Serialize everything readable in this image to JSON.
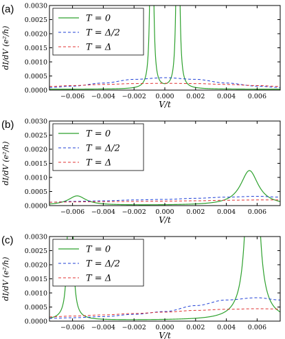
{
  "colors": {
    "t0": "#2ca02c",
    "thalf": "#1f3fd6",
    "tdelta": "#e03030",
    "axis": "#000000"
  },
  "chart_data": [
    {
      "panel_label": "(a)",
      "type": "line",
      "xlabel": "V/t",
      "ylabel": "dI/dV (e²/h)",
      "xlim": [
        -0.0075,
        0.0075
      ],
      "ylim": [
        0,
        0.003
      ],
      "xticks": [
        "-0.006",
        "-0.004",
        "-0.002",
        "0.000",
        "0.002",
        "0.004",
        "0.006"
      ],
      "yticks": [
        "0.0000",
        "0.0005",
        "0.0010",
        "0.0015",
        "0.0020",
        "0.0025",
        "0.0030"
      ],
      "legend_position": "top-left",
      "series": [
        {
          "name": "T = 0",
          "style": "solid",
          "color": "#2ca02c",
          "peaks": [
            {
              "x0": -0.00085,
              "gamma": 6e-05,
              "amp": 0.02
            },
            {
              "x0": 0.00085,
              "gamma": 6e-05,
              "amp": 0.02
            }
          ],
          "baseline": 3e-05
        },
        {
          "name": "T = Δ/2",
          "style": "dashed",
          "color": "#1f3fd6",
          "x": [
            -0.0075,
            -0.006,
            -0.004,
            -0.002,
            0.0,
            0.002,
            0.004,
            0.006,
            0.0075
          ],
          "y": [
            9e-05,
            0.00014,
            0.00025,
            0.00038,
            0.00044,
            0.00038,
            0.00025,
            0.00014,
            9e-05
          ]
        },
        {
          "name": "T = Δ",
          "style": "dashed",
          "color": "#e03030",
          "x": [
            -0.0075,
            -0.006,
            -0.004,
            -0.002,
            0.0,
            0.002,
            0.004,
            0.006,
            0.0075
          ],
          "y": [
            0.00013,
            0.00016,
            0.0002,
            0.00023,
            0.00024,
            0.00023,
            0.0002,
            0.00016,
            0.00013
          ]
        }
      ]
    },
    {
      "panel_label": "(b)",
      "type": "line",
      "xlabel": "V/t",
      "ylabel": "dI/dV (e²/h)",
      "xlim": [
        -0.0075,
        0.0075
      ],
      "ylim": [
        0,
        0.003
      ],
      "xticks": [
        "-0.006",
        "-0.004",
        "-0.002",
        "0.000",
        "0.002",
        "0.004",
        "0.006"
      ],
      "yticks": [
        "0.0000",
        "0.0005",
        "0.0010",
        "0.0015",
        "0.0020",
        "0.0025",
        "0.0030"
      ],
      "legend_position": "top-left",
      "series": [
        {
          "name": "T = 0",
          "style": "solid",
          "color": "#2ca02c",
          "peaks": [
            {
              "x0": -0.0057,
              "gamma": 0.0007,
              "amp": 0.00033
            },
            {
              "x0": 0.0055,
              "gamma": 0.0007,
              "amp": 0.00123
            }
          ],
          "baseline": 1e-05
        },
        {
          "name": "T = Δ/2",
          "style": "dashed",
          "color": "#1f3fd6",
          "x": [
            -0.0075,
            -0.006,
            -0.004,
            -0.002,
            0.0,
            0.002,
            0.004,
            0.006,
            0.0075
          ],
          "y": [
            0.00012,
            0.00015,
            0.00017,
            0.0002,
            0.00022,
            0.00026,
            0.0003,
            0.00033,
            0.0003
          ]
        },
        {
          "name": "T = Δ",
          "style": "dashed",
          "color": "#e03030",
          "x": [
            -0.0075,
            -0.006,
            -0.004,
            -0.002,
            0.0,
            0.002,
            0.004,
            0.006,
            0.0075
          ],
          "y": [
            0.00012,
            0.00013,
            0.00014,
            0.00015,
            0.00016,
            0.00017,
            0.00019,
            0.0002,
            0.0002
          ]
        }
      ]
    },
    {
      "panel_label": "(c)",
      "type": "line",
      "xlabel": "V/t",
      "ylabel": "dI/dV (e²/h)",
      "xlim": [
        -0.0075,
        0.0075
      ],
      "ylim": [
        0,
        0.003
      ],
      "xticks": [
        "-0.006",
        "-0.004",
        "-0.002",
        "0.000",
        "0.002",
        "0.004",
        "0.006"
      ],
      "yticks": [
        "0.0000",
        "0.0005",
        "0.0010",
        "0.0015",
        "0.0020",
        "0.0025",
        "0.0030"
      ],
      "legend_position": "top-left",
      "series": [
        {
          "name": "T = 0",
          "style": "solid",
          "color": "#2ca02c",
          "peaks": [
            {
              "x0": -0.00615,
              "gamma": 8e-05,
              "amp": 0.02
            },
            {
              "x0": 0.0057,
              "gamma": 0.00022,
              "amp": 0.02
            }
          ],
          "baseline": 3e-05
        },
        {
          "name": "T = Δ/2",
          "style": "dashed",
          "color": "#1f3fd6",
          "x": [
            -0.0075,
            -0.006,
            -0.004,
            -0.002,
            0.0,
            0.002,
            0.004,
            0.006,
            0.0075
          ],
          "y": [
            0.0001,
            0.00012,
            0.00016,
            0.00024,
            0.00034,
            0.00055,
            0.00075,
            0.00083,
            0.00075
          ]
        },
        {
          "name": "T = Δ",
          "style": "dashed",
          "color": "#e03030",
          "x": [
            -0.0075,
            -0.006,
            -0.004,
            -0.002,
            0.0,
            0.002,
            0.004,
            0.006,
            0.0075
          ],
          "y": [
            0.00015,
            0.00018,
            0.00022,
            0.00027,
            0.00032,
            0.00038,
            0.00042,
            0.00044,
            0.00043
          ]
        }
      ]
    }
  ]
}
